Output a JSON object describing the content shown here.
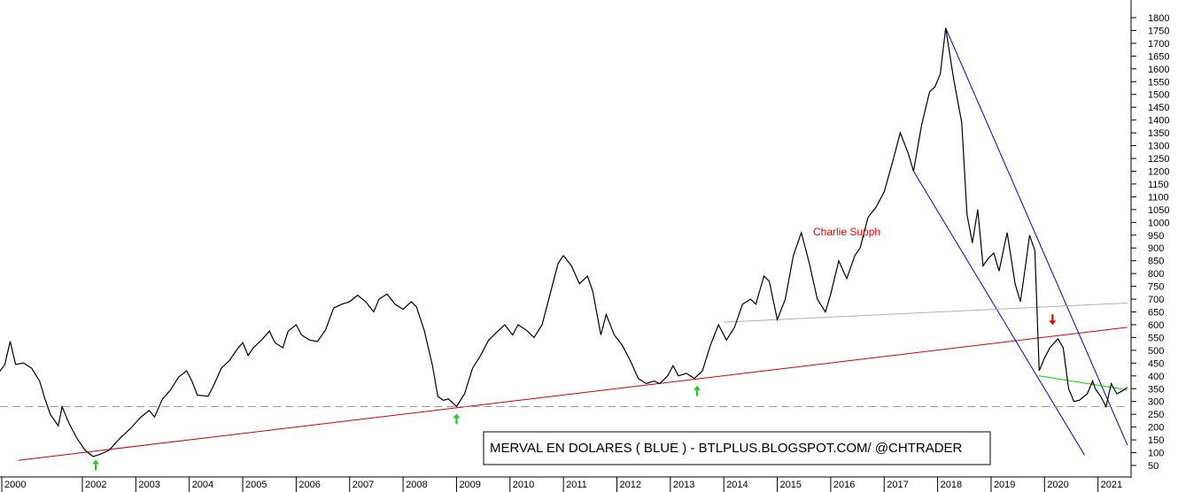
{
  "chart_data": {
    "type": "line",
    "title": "MERVAL EN DOLARES ( BLUE ) - BTLPLUS.BLOGSPOT.COM/ @CHTRADER",
    "annotation": "Charlie Supph",
    "x_range": [
      2000.0,
      2021.55
    ],
    "x_ticks": [
      "2000",
      "2002",
      "2003",
      "2004",
      "2005",
      "2006",
      "2007",
      "2008",
      "2009",
      "2010",
      "2011",
      "2012",
      "2013",
      "2014",
      "2015",
      "2016",
      "2017",
      "2018",
      "2019",
      "2020",
      "2021"
    ],
    "ylim": [
      20,
      1850
    ],
    "y_ticks": [
      50,
      100,
      150,
      200,
      250,
      300,
      350,
      400,
      450,
      500,
      550,
      600,
      650,
      700,
      750,
      800,
      850,
      900,
      950,
      1000,
      1050,
      1100,
      1150,
      1200,
      1250,
      1300,
      1350,
      1400,
      1450,
      1500,
      1550,
      1600,
      1650,
      1700,
      1750,
      1800
    ],
    "y_axis_position": "right",
    "grid": false,
    "series": [
      {
        "color": "#000000",
        "points": [
          [
            2000.0,
            505
          ],
          [
            2000.17,
            485
          ],
          [
            2000.3,
            460
          ],
          [
            2000.43,
            410
          ],
          [
            2000.55,
            445
          ],
          [
            2000.65,
            535
          ],
          [
            2000.75,
            445
          ],
          [
            2000.9,
            450
          ],
          [
            2001.05,
            430
          ],
          [
            2001.2,
            380
          ],
          [
            2001.3,
            310
          ],
          [
            2001.4,
            250
          ],
          [
            2001.55,
            205
          ],
          [
            2001.62,
            280
          ],
          [
            2001.75,
            215
          ],
          [
            2001.9,
            155
          ],
          [
            2002.05,
            110
          ],
          [
            2002.2,
            85
          ],
          [
            2002.35,
            95
          ],
          [
            2002.5,
            110
          ],
          [
            2002.7,
            155
          ],
          [
            2002.9,
            195
          ],
          [
            2003.1,
            240
          ],
          [
            2003.25,
            265
          ],
          [
            2003.35,
            240
          ],
          [
            2003.5,
            310
          ],
          [
            2003.65,
            345
          ],
          [
            2003.8,
            395
          ],
          [
            2003.95,
            420
          ],
          [
            2004.05,
            380
          ],
          [
            2004.15,
            325
          ],
          [
            2004.35,
            320
          ],
          [
            2004.45,
            360
          ],
          [
            2004.6,
            430
          ],
          [
            2004.75,
            460
          ],
          [
            2004.9,
            505
          ],
          [
            2005.0,
            530
          ],
          [
            2005.1,
            480
          ],
          [
            2005.2,
            510
          ],
          [
            2005.35,
            540
          ],
          [
            2005.5,
            575
          ],
          [
            2005.6,
            530
          ],
          [
            2005.75,
            510
          ],
          [
            2005.85,
            575
          ],
          [
            2006.0,
            600
          ],
          [
            2006.1,
            560
          ],
          [
            2006.25,
            540
          ],
          [
            2006.4,
            535
          ],
          [
            2006.55,
            580
          ],
          [
            2006.7,
            665
          ],
          [
            2006.85,
            680
          ],
          [
            2007.0,
            690
          ],
          [
            2007.15,
            715
          ],
          [
            2007.3,
            690
          ],
          [
            2007.45,
            650
          ],
          [
            2007.55,
            700
          ],
          [
            2007.7,
            720
          ],
          [
            2007.85,
            680
          ],
          [
            2008.0,
            660
          ],
          [
            2008.15,
            690
          ],
          [
            2008.25,
            670
          ],
          [
            2008.4,
            575
          ],
          [
            2008.55,
            440
          ],
          [
            2008.65,
            320
          ],
          [
            2008.75,
            305
          ],
          [
            2008.85,
            310
          ],
          [
            2009.0,
            280
          ],
          [
            2009.15,
            330
          ],
          [
            2009.3,
            430
          ],
          [
            2009.45,
            480
          ],
          [
            2009.6,
            540
          ],
          [
            2009.75,
            570
          ],
          [
            2009.9,
            600
          ],
          [
            2010.05,
            560
          ],
          [
            2010.15,
            600
          ],
          [
            2010.3,
            580
          ],
          [
            2010.45,
            550
          ],
          [
            2010.6,
            600
          ],
          [
            2010.75,
            720
          ],
          [
            2010.9,
            840
          ],
          [
            2011.0,
            870
          ],
          [
            2011.15,
            830
          ],
          [
            2011.3,
            760
          ],
          [
            2011.45,
            790
          ],
          [
            2011.55,
            730
          ],
          [
            2011.7,
            560
          ],
          [
            2011.8,
            640
          ],
          [
            2011.95,
            560
          ],
          [
            2012.1,
            520
          ],
          [
            2012.25,
            460
          ],
          [
            2012.4,
            390
          ],
          [
            2012.55,
            370
          ],
          [
            2012.7,
            380
          ],
          [
            2012.8,
            370
          ],
          [
            2012.95,
            400
          ],
          [
            2013.05,
            440
          ],
          [
            2013.15,
            400
          ],
          [
            2013.3,
            410
          ],
          [
            2013.45,
            390
          ],
          [
            2013.6,
            420
          ],
          [
            2013.75,
            520
          ],
          [
            2013.9,
            600
          ],
          [
            2014.05,
            540
          ],
          [
            2014.2,
            590
          ],
          [
            2014.35,
            680
          ],
          [
            2014.5,
            700
          ],
          [
            2014.6,
            680
          ],
          [
            2014.75,
            790
          ],
          [
            2014.85,
            770
          ],
          [
            2015.0,
            620
          ],
          [
            2015.15,
            700
          ],
          [
            2015.3,
            870
          ],
          [
            2015.45,
            960
          ],
          [
            2015.6,
            840
          ],
          [
            2015.75,
            700
          ],
          [
            2015.9,
            650
          ],
          [
            2016.0,
            720
          ],
          [
            2016.15,
            850
          ],
          [
            2016.3,
            780
          ],
          [
            2016.45,
            870
          ],
          [
            2016.55,
            900
          ],
          [
            2016.7,
            1020
          ],
          [
            2016.85,
            1060
          ],
          [
            2017.0,
            1120
          ],
          [
            2017.15,
            1230
          ],
          [
            2017.3,
            1350
          ],
          [
            2017.45,
            1270
          ],
          [
            2017.55,
            1200
          ],
          [
            2017.7,
            1380
          ],
          [
            2017.85,
            1510
          ],
          [
            2017.95,
            1530
          ],
          [
            2018.05,
            1580
          ],
          [
            2018.15,
            1760
          ],
          [
            2018.3,
            1560
          ],
          [
            2018.45,
            1390
          ],
          [
            2018.55,
            1030
          ],
          [
            2018.65,
            920
          ],
          [
            2018.75,
            1050
          ],
          [
            2018.85,
            830
          ],
          [
            2018.95,
            860
          ],
          [
            2019.05,
            880
          ],
          [
            2019.15,
            810
          ],
          [
            2019.3,
            960
          ],
          [
            2019.45,
            760
          ],
          [
            2019.55,
            690
          ],
          [
            2019.65,
            840
          ],
          [
            2019.72,
            950
          ],
          [
            2019.82,
            890
          ],
          [
            2019.9,
            420
          ],
          [
            2020.0,
            470
          ],
          [
            2020.1,
            510
          ],
          [
            2020.25,
            545
          ],
          [
            2020.35,
            510
          ],
          [
            2020.45,
            350
          ],
          [
            2020.55,
            300
          ],
          [
            2020.65,
            305
          ],
          [
            2020.8,
            330
          ],
          [
            2020.9,
            380
          ],
          [
            2020.95,
            350
          ],
          [
            2021.05,
            320
          ],
          [
            2021.15,
            280
          ],
          [
            2021.25,
            370
          ],
          [
            2021.35,
            330
          ],
          [
            2021.45,
            340
          ],
          [
            2021.55,
            355
          ]
        ]
      }
    ],
    "lines": [
      {
        "color": "#cc0000",
        "from": [
          2000.8,
          70
        ],
        "to": [
          2021.55,
          590
        ]
      },
      {
        "color": "#0000cc",
        "from": [
          2018.15,
          1760
        ],
        "to": [
          2021.55,
          130
        ]
      },
      {
        "color": "#0000cc",
        "from": [
          2017.55,
          1200
        ],
        "to": [
          2020.75,
          90
        ]
      },
      {
        "color": "#00cc00",
        "from": [
          2019.9,
          400
        ],
        "to": [
          2021.55,
          345
        ]
      },
      {
        "color": "#b0b0b0",
        "from": [
          2014.0,
          610
        ],
        "to": [
          2021.55,
          685
        ]
      },
      {
        "color": "#999999",
        "dashed": true,
        "from": [
          2000.0,
          280
        ],
        "to": [
          2021.55,
          280
        ]
      }
    ],
    "up_arrows": [
      [
        2002.25,
        100
      ],
      [
        2009.0,
        280
      ],
      [
        2013.5,
        390
      ]
    ],
    "down_arrows": [
      [
        2020.15,
        620
      ]
    ]
  }
}
